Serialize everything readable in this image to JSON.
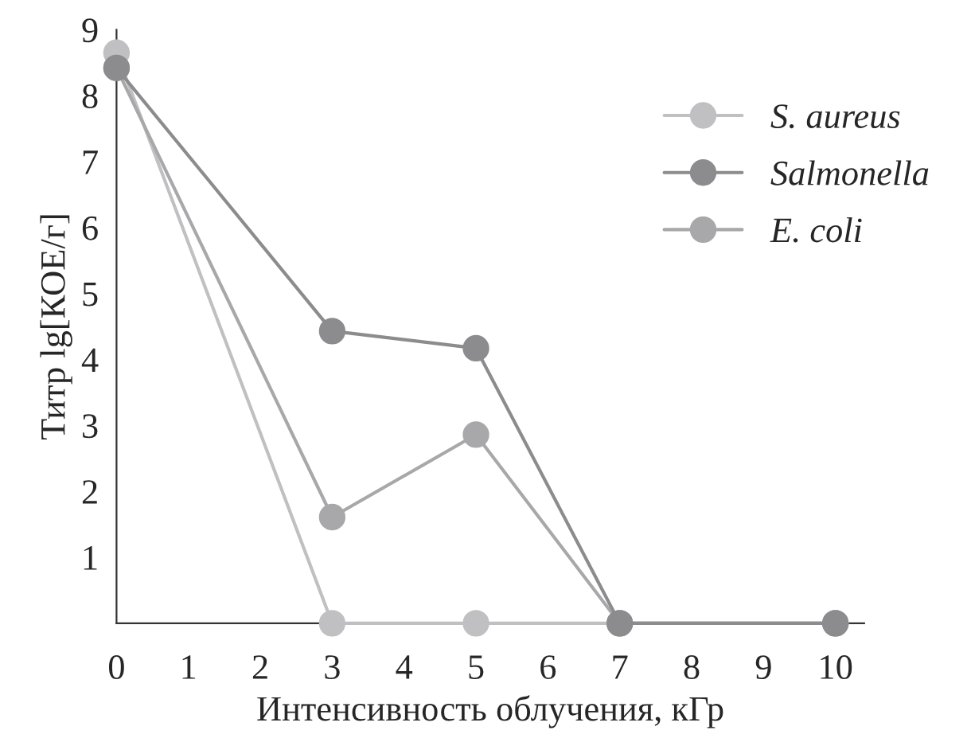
{
  "chart_data": {
    "type": "line",
    "xlabel": "Интенсивность облучения, кГр",
    "ylabel": "Титр lg[КОЕ/г]",
    "x": [
      0,
      3,
      5,
      7,
      10
    ],
    "series": [
      {
        "name": "S. aureus",
        "color": "#c0c0c2",
        "values": [
          8.65,
          0,
          0,
          0,
          0
        ]
      },
      {
        "name": "Salmonella",
        "color": "#8c8c8e",
        "values": [
          8.42,
          4.43,
          4.17,
          0,
          0
        ]
      },
      {
        "name": "E. coli",
        "color": "#a8a8aa",
        "values": [
          8.42,
          1.61,
          2.86,
          0,
          0
        ]
      }
    ],
    "xlim": [
      0,
      10.4
    ],
    "xticks": [
      0,
      1,
      2,
      3,
      4,
      5,
      6,
      7,
      8,
      9,
      10
    ],
    "ylim": [
      0,
      9
    ],
    "yticks": [
      1,
      2,
      3,
      4,
      5,
      6,
      7,
      8,
      9
    ],
    "marker": "circle",
    "line_style": "solid",
    "grid": false,
    "legend": "top right"
  }
}
